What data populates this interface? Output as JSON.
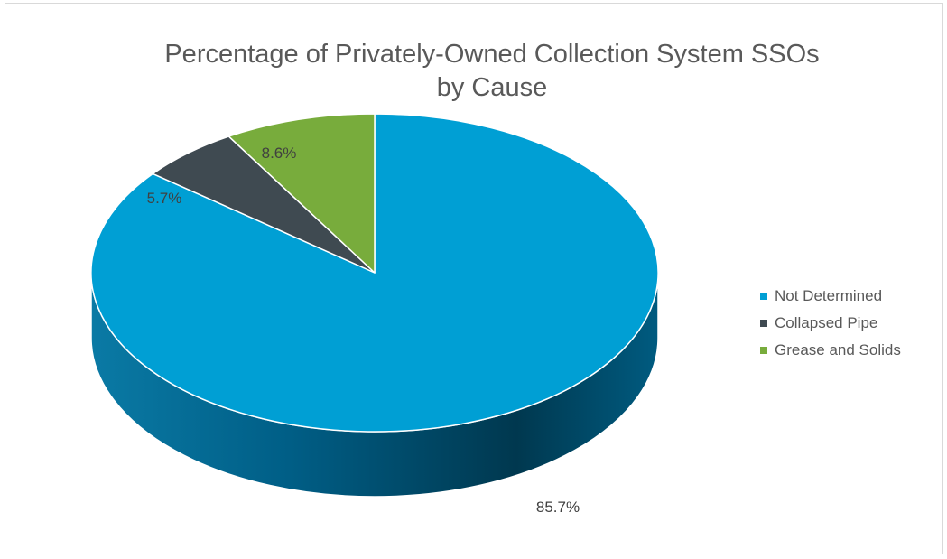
{
  "chart_data": {
    "type": "pie",
    "title": "Percentage of Privately-Owned Collection System SSOs by Cause",
    "title_lines": [
      "Percentage of Privately-Owned Collection System SSOs",
      "by Cause"
    ],
    "categories": [
      "Not Determined",
      "Collapsed Pipe",
      "Grease and Solids"
    ],
    "values": [
      85.7,
      5.7,
      8.6
    ],
    "data_labels": [
      "85.7%",
      "5.7%",
      "8.6%"
    ],
    "colors": [
      "#009fd4",
      "#3f4a51",
      "#78ac3c"
    ],
    "legend_position": "right",
    "style": "3d"
  }
}
